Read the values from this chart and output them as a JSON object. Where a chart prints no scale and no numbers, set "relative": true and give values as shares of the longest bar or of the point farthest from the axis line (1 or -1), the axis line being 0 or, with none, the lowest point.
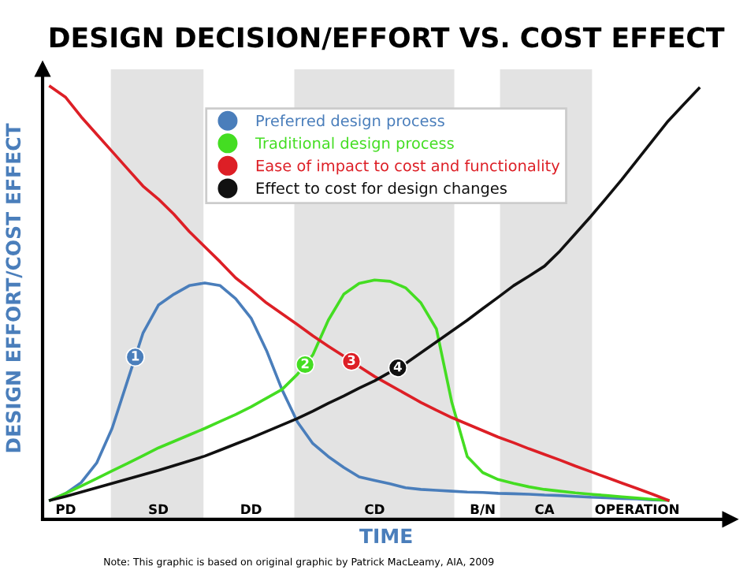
{
  "chart_data": {
    "type": "line",
    "relative": true,
    "title": "DESIGN DECISION/EFFORT VS. COST EFFECT",
    "xlabel": "TIME",
    "ylabel": "DESIGN EFFORT/COST EFFECT",
    "categories": [
      null,
      "PD",
      null,
      null,
      null,
      null,
      null,
      "SD",
      null,
      null,
      null,
      null,
      null,
      "DD",
      null,
      null,
      null,
      null,
      null,
      null,
      null,
      "CD",
      null,
      null,
      null,
      null,
      null,
      null,
      "B/N",
      null,
      null,
      null,
      "CA",
      null,
      null,
      null,
      null,
      null,
      "OPERATION",
      null,
      null,
      null,
      null
    ],
    "series": [
      {
        "name": "Preferred design process",
        "color": "#4a7ebb",
        "values": [
          0.044,
          0.06,
          0.085,
          0.13,
          0.21,
          0.32,
          0.43,
          0.495,
          0.52,
          0.54,
          0.546,
          0.54,
          0.51,
          0.465,
          0.39,
          0.3,
          0.225,
          0.175,
          0.145,
          0.12,
          0.098,
          0.09,
          0.082,
          0.073,
          0.069,
          0.067,
          0.065,
          0.063,
          0.062,
          0.06,
          0.059,
          0.058,
          0.056,
          0.055,
          0.053,
          0.051,
          0.05,
          0.048,
          0.047,
          0.045,
          0.044,
          null,
          null
        ]
      },
      {
        "name": "Traditional design process",
        "color": "#44dd22",
        "values": [
          0.044,
          0.06,
          0.077,
          0.094,
          0.112,
          0.129,
          0.147,
          0.165,
          0.18,
          0.195,
          0.21,
          0.226,
          0.242,
          0.26,
          0.28,
          0.3,
          0.335,
          0.38,
          0.46,
          0.52,
          0.545,
          0.553,
          0.55,
          0.535,
          0.5,
          0.44,
          0.27,
          0.145,
          0.108,
          0.092,
          0.083,
          0.075,
          0.069,
          0.065,
          0.061,
          0.058,
          0.055,
          0.052,
          0.049,
          0.046,
          0.044,
          null,
          null
        ]
      },
      {
        "name": "Ease of impact to cost and functionality",
        "color": "#dd1f26",
        "values": [
          1.0,
          0.975,
          0.93,
          0.89,
          0.85,
          0.81,
          0.77,
          0.74,
          0.705,
          0.665,
          0.63,
          0.595,
          0.558,
          0.53,
          0.5,
          0.475,
          0.45,
          0.424,
          0.4,
          0.377,
          0.353,
          0.33,
          0.31,
          0.29,
          0.27,
          0.252,
          0.235,
          0.22,
          0.205,
          0.19,
          0.177,
          0.163,
          0.15,
          0.137,
          0.123,
          0.11,
          0.097,
          0.084,
          0.071,
          0.058,
          0.044,
          null,
          null
        ]
      },
      {
        "name": "Effect to cost for design changes",
        "color": "#111111",
        "values": [
          0.044,
          0.053,
          0.063,
          0.073,
          0.083,
          0.093,
          0.103,
          0.113,
          0.124,
          0.135,
          0.146,
          0.16,
          0.174,
          0.188,
          0.203,
          0.218,
          0.233,
          0.25,
          0.268,
          0.285,
          0.303,
          0.32,
          0.34,
          0.36,
          0.385,
          0.41,
          0.435,
          0.46,
          0.487,
          0.513,
          0.54,
          0.562,
          0.585,
          0.62,
          0.66,
          0.7,
          0.742,
          0.785,
          0.83,
          0.875,
          0.92,
          0.958,
          0.996
        ]
      }
    ],
    "annotations": [
      {
        "text": "1",
        "y": 0.375
      },
      {
        "text": "2",
        "y": 0.3575
      },
      {
        "text": "3",
        "y": 0.365
      },
      {
        "text": "4",
        "y": 0.35
      },
      "Note: This graphic is based on original graphic by Patrick MacLeamy, AIA, 2009"
    ],
    "legend": "top"
  }
}
